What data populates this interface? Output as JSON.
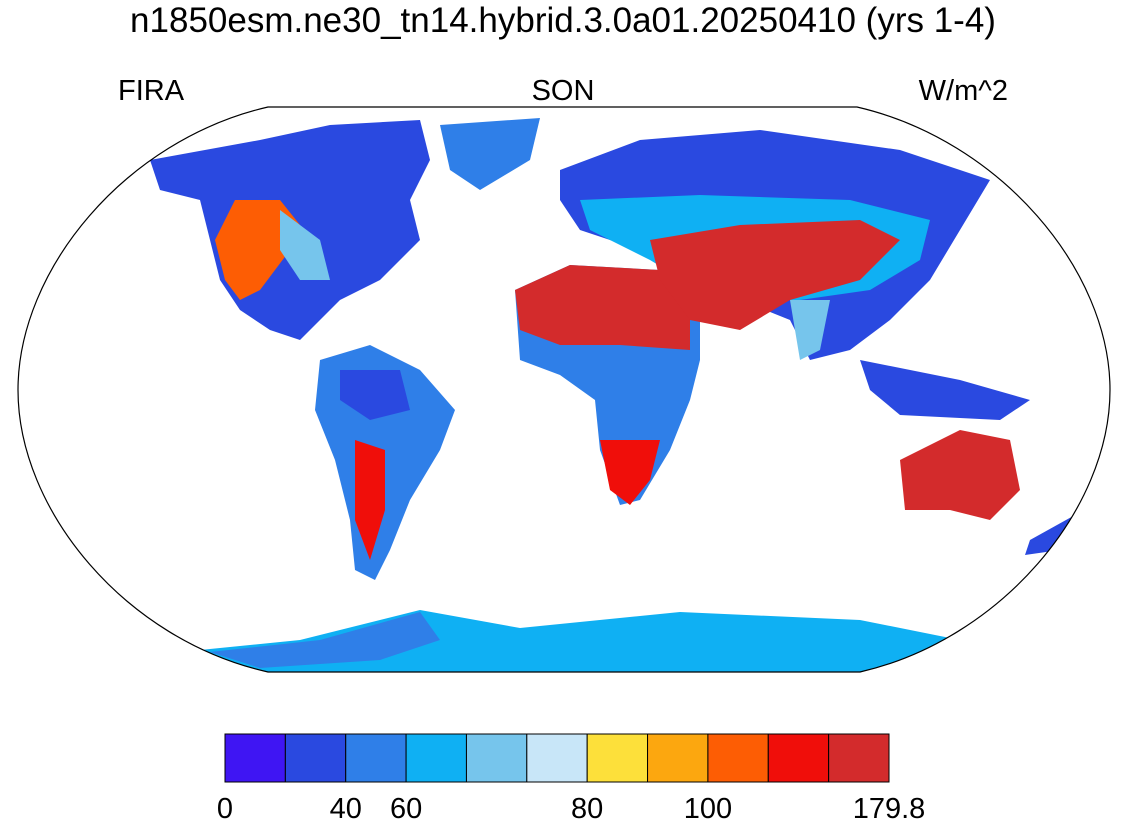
{
  "title": "n1850esm.ne30_tn14.hybrid.3.0a01.20250410 (yrs 1-4)",
  "subtitles": {
    "left": "FIRA",
    "center": "SON",
    "right": "W/m^2"
  },
  "colorbar": {
    "colors": [
      "#3f15f3",
      "#2a49e0",
      "#2f7fe8",
      "#0fb0f3",
      "#76c5ec",
      "#c8e6f8",
      "#fde03a",
      "#fca70f",
      "#fd5d04",
      "#f00e0a",
      "#d32b2c"
    ],
    "labels": [
      0,
      null,
      40,
      60,
      null,
      null,
      80,
      null,
      100,
      null,
      null,
      179.8
    ]
  }
}
